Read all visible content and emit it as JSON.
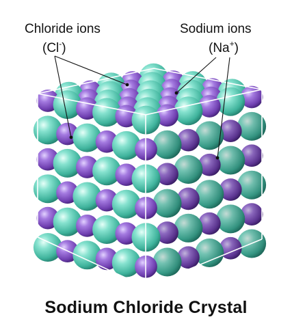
{
  "labels": {
    "chloride": {
      "name": "Chloride ions",
      "symbol": "Cl",
      "charge": "-"
    },
    "sodium": {
      "name": "Sodium ions",
      "symbol": "Na",
      "charge": "+"
    }
  },
  "title": "Sodium Chloride Crystal",
  "colors": {
    "chloride": "#5cc9b4",
    "sodium": "#8a55c7",
    "background": "#ffffff",
    "frame": "#ffffff",
    "text": "#111111"
  },
  "lattice": {
    "ions_per_edge": 6,
    "arrangement": "alternating"
  }
}
